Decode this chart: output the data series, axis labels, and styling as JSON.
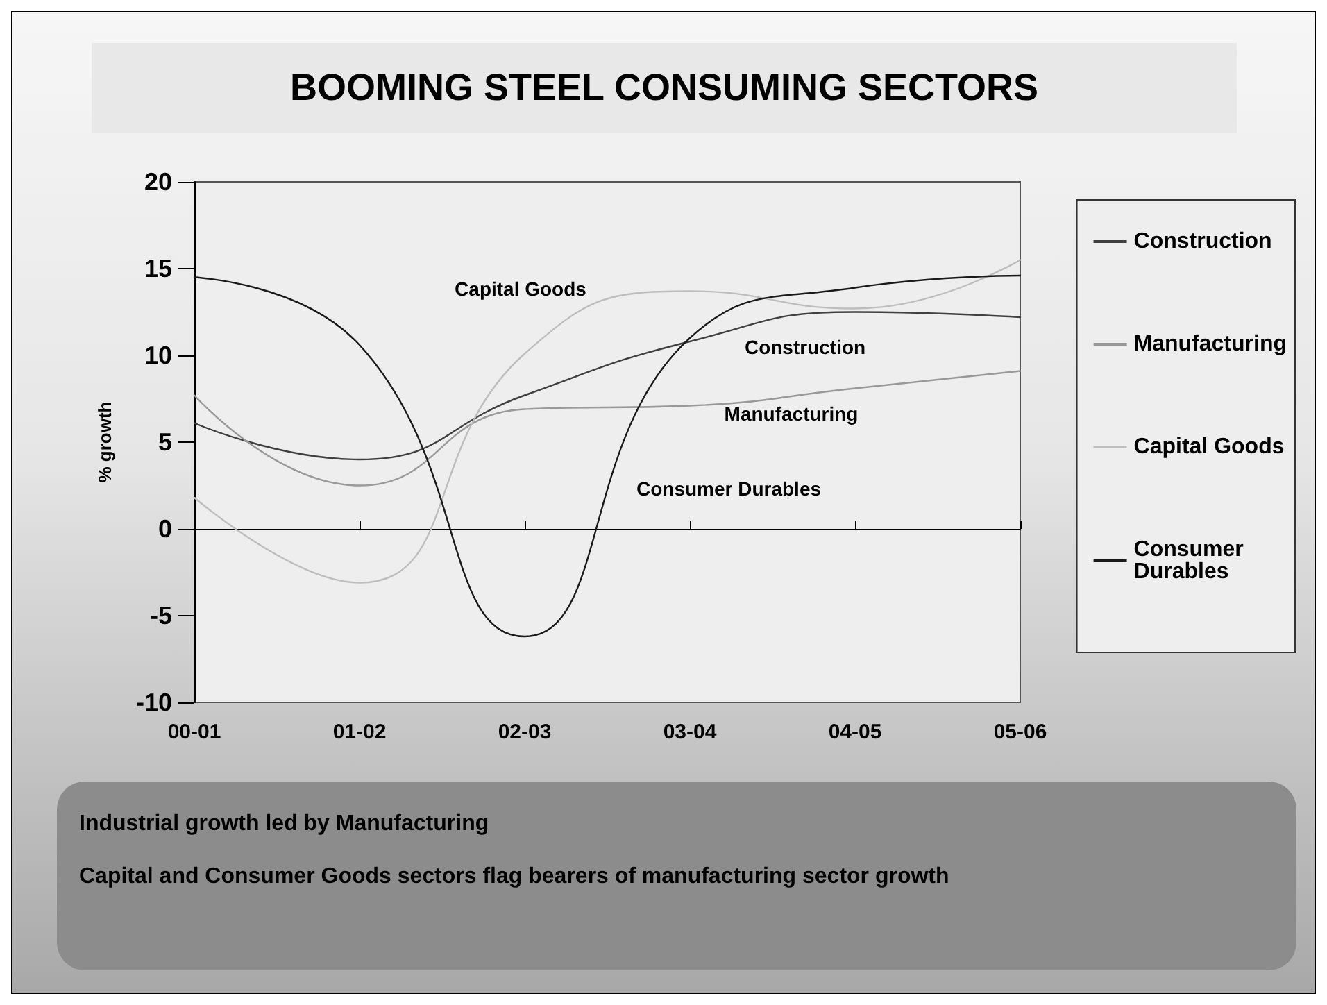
{
  "chart_data": {
    "type": "line",
    "title": "BOOMING STEEL CONSUMING SECTORS",
    "ylabel": "% growth",
    "categories": [
      "00-01",
      "01-02",
      "02-03",
      "03-04",
      "04-05",
      "05-06"
    ],
    "series": [
      {
        "name": "Construction",
        "color": "#404040",
        "values": [
          6.1,
          4.0,
          7.7,
          10.8,
          12.5,
          12.2
        ]
      },
      {
        "name": "Manufacturing",
        "color": "#999999",
        "values": [
          7.7,
          2.5,
          6.9,
          7.1,
          8.1,
          9.1
        ]
      },
      {
        "name": "Capital Goods",
        "color": "#bdbdbd",
        "values": [
          1.8,
          -3.1,
          10.1,
          13.7,
          12.7,
          15.5
        ]
      },
      {
        "name": "Consumer Durables",
        "color": "#1a1a1a",
        "values": [
          14.5,
          10.6,
          -6.2,
          11,
          13.9,
          14.6
        ]
      }
    ],
    "ylim": [
      -10,
      20
    ],
    "yticks": [
      -10,
      -5,
      0,
      5,
      10,
      15,
      20
    ],
    "legend": "right",
    "marker": "none",
    "line_style": "solid",
    "annotations": [
      "Capital Goods",
      "Construction",
      "Manufacturing",
      "Consumer Durables",
      "Industrial growth led by Manufacturing",
      "Capital and Consumer Goods sectors flag bearers of manufacturing sector growth"
    ]
  }
}
